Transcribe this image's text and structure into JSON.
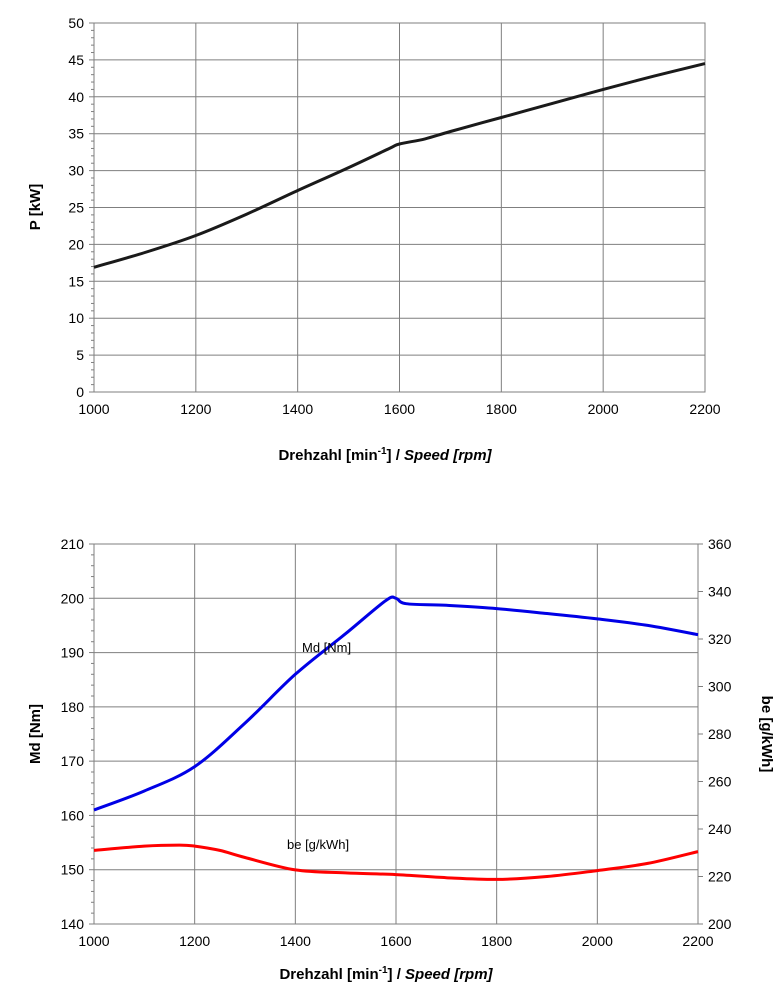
{
  "colors": {
    "power": "#1a1a1a",
    "torque": "#0000e6",
    "consumption": "#ff0000",
    "grid": "#7f7f7f"
  },
  "chart_data": [
    {
      "type": "line",
      "title": "",
      "xlabel": {
        "main": "Drehzahl  [min",
        "sup": "-1",
        "close": "] / ",
        "italic": "Speed [rpm]"
      },
      "ylabel": "P [kW]",
      "xlim": [
        1000,
        2200
      ],
      "ylim": [
        0,
        50
      ],
      "x_ticks": [
        "1000",
        "1200",
        "1400",
        "1600",
        "1800",
        "2000",
        "2200"
      ],
      "y_ticks": [
        "0",
        "5",
        "10",
        "15",
        "20",
        "25",
        "30",
        "35",
        "40",
        "45",
        "50"
      ],
      "grid": true,
      "series": [
        {
          "color": "#1a1a1a",
          "x": [
            1000,
            1100,
            1200,
            1300,
            1400,
            1500,
            1580,
            1600,
            1650,
            1700,
            1800,
            1900,
            2000,
            2100,
            2200
          ],
          "y": [
            16.9,
            18.9,
            21.2,
            24.1,
            27.3,
            30.4,
            33.0,
            33.6,
            34.3,
            35.3,
            37.2,
            39.1,
            41.0,
            42.8,
            44.5
          ]
        }
      ]
    },
    {
      "type": "line",
      "title": "",
      "xlabel": {
        "main": "Drehzahl  [min",
        "sup": "-1",
        "close": "] / ",
        "italic": "Speed [rpm]"
      },
      "ylabel": "Md [Nm]",
      "y2label": "be [g/kWh]",
      "xlim": [
        1000,
        2200
      ],
      "ylim": [
        140,
        210
      ],
      "y2lim": [
        200,
        360
      ],
      "x_ticks": [
        "1000",
        "1200",
        "1400",
        "1600",
        "1800",
        "2000",
        "2200"
      ],
      "y_ticks": [
        "140",
        "150",
        "160",
        "170",
        "180",
        "190",
        "200",
        "210"
      ],
      "y2_ticks": [
        "200",
        "220",
        "240",
        "260",
        "280",
        "300",
        "320",
        "340",
        "360"
      ],
      "grid": true,
      "series": [
        {
          "name": "Md [Nm]",
          "axis": "left",
          "color": "#0000e6",
          "x": [
            1000,
            1100,
            1200,
            1300,
            1400,
            1500,
            1580,
            1600,
            1620,
            1700,
            1800,
            1900,
            2000,
            2100,
            2200
          ],
          "y": [
            161.0,
            164.5,
            169.0,
            177.0,
            186.0,
            193.5,
            199.6,
            200.0,
            199.0,
            198.7,
            198.1,
            197.2,
            196.2,
            195.0,
            193.3
          ]
        },
        {
          "name": "be [g/kWh]",
          "axis": "right",
          "color": "#ff0000",
          "x": [
            1000,
            1100,
            1170,
            1200,
            1250,
            1300,
            1400,
            1500,
            1600,
            1700,
            1800,
            1900,
            2000,
            2100,
            2200
          ],
          "y": [
            231.0,
            232.8,
            233.2,
            232.8,
            231.0,
            228.0,
            222.8,
            221.5,
            220.8,
            219.5,
            218.8,
            220.0,
            222.5,
            225.5,
            230.5
          ]
        }
      ]
    }
  ]
}
